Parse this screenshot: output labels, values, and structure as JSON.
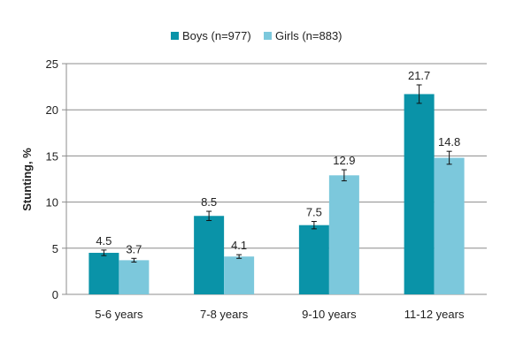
{
  "chart_data": {
    "type": "bar",
    "title": "",
    "xlabel": "",
    "ylabel": "Stunting, %",
    "ylim": [
      0,
      25
    ],
    "yticks": [
      0,
      5,
      10,
      15,
      20,
      25
    ],
    "grid": true,
    "legend_position": "top",
    "categories": [
      "5-6 years",
      "7-8 years",
      "9-10 years",
      "11-12 years"
    ],
    "series": [
      {
        "name": "Boys (n=977)",
        "color": "#0a93a8",
        "values": [
          4.5,
          8.5,
          7.5,
          21.7
        ],
        "labels": [
          "4.5",
          "8.5",
          "7.5",
          "21.7"
        ],
        "error": [
          0.3,
          0.5,
          0.4,
          1.0
        ]
      },
      {
        "name": "Girls (n=883)",
        "color": "#7cc8dc",
        "values": [
          3.7,
          4.1,
          12.9,
          14.8
        ],
        "labels": [
          "3.7",
          "4.1",
          "12.9",
          "14.8"
        ],
        "error": [
          0.2,
          0.2,
          0.6,
          0.7
        ]
      }
    ]
  }
}
